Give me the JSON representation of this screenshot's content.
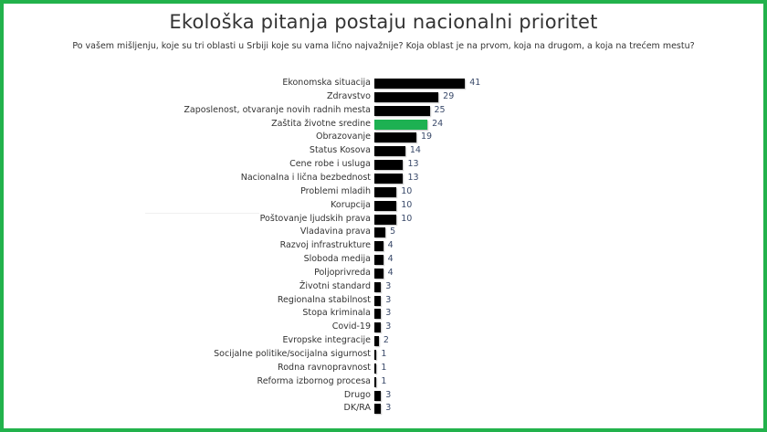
{
  "header": {
    "title": "Ekološka pitanja postaju nacionalni prioritet",
    "subtitle": "Po vašem mišljenju, koje su tri oblasti u Srbiji koje su vama lično najvažnije? Koja oblast je na prvom, koja na drugom, a koja na trećem mestu?"
  },
  "colors": {
    "border": "#22b24c",
    "bar": "#000000",
    "highlight_bar": "#1db152",
    "value_text": "#3a4a6a"
  },
  "chart_data": {
    "type": "bar",
    "orientation": "horizontal",
    "title": "Ekološka pitanja postaju nacionalni prioritet",
    "subtitle": "Po vašem mišljenju, koje su tri oblasti u Srbiji koje su vama lično najvažnije? Koja oblast je na prvom, koja na drugom, a koja na trećem mestu?",
    "xlabel": "",
    "ylabel": "",
    "grid": false,
    "legend": null,
    "highlighted_category": "Zaštita životne sredine",
    "categories": [
      "Ekonomska situacija",
      "Zdravstvo",
      "Zaposlenost, otvaranje novih radnih mesta",
      "Zaštita životne sredine",
      "Obrazovanje",
      "Status Kosova",
      "Cene robe i usluga",
      "Nacionalna i lična bezbednost",
      "Problemi mladih",
      "Korupcija",
      "Poštovanje ljudskih prava",
      "Vladavina prava",
      "Razvoj infrastrukture",
      "Sloboda medija",
      "Poljoprivreda",
      "Životni standard",
      "Regionalna stabilnost",
      "Stopa kriminala",
      "Covid-19",
      "Evropske integracije",
      "Socijalne politike/socijalna sigurnost",
      "Rodna ravnopravnost",
      "Reforma izbornog procesa",
      "Drugo",
      "DK/RA"
    ],
    "values": [
      41,
      29,
      25,
      24,
      19,
      14,
      13,
      13,
      10,
      10,
      10,
      5,
      4,
      4,
      4,
      3,
      3,
      3,
      3,
      2,
      1,
      1,
      1,
      3,
      3
    ]
  }
}
